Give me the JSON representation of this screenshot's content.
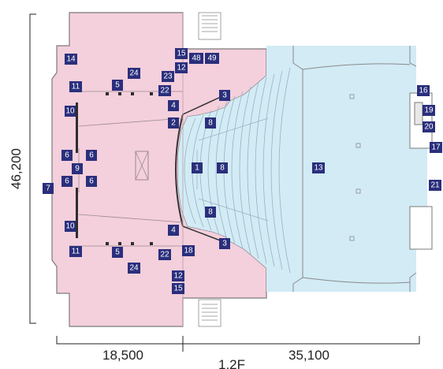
{
  "dimensions": {
    "height": "46,200",
    "width_left": "18,500",
    "width_right": "35,100",
    "floor": "1,2F"
  },
  "colors": {
    "stage": "#f4cfdc",
    "auditorium": "#d2ebf5",
    "wall": "#7b7b7b",
    "tag": "#2a2f7c"
  },
  "labels": [
    "1",
    "2",
    "3",
    "3",
    "4",
    "4",
    "5",
    "5",
    "6",
    "6",
    "6",
    "6",
    "7",
    "8",
    "8",
    "8",
    "9",
    "10",
    "10",
    "11",
    "11",
    "12",
    "12",
    "13",
    "14",
    "15",
    "15",
    "16",
    "17",
    "18",
    "19",
    "20",
    "21",
    "22",
    "22",
    "23",
    "24",
    "24",
    "48",
    "49"
  ]
}
